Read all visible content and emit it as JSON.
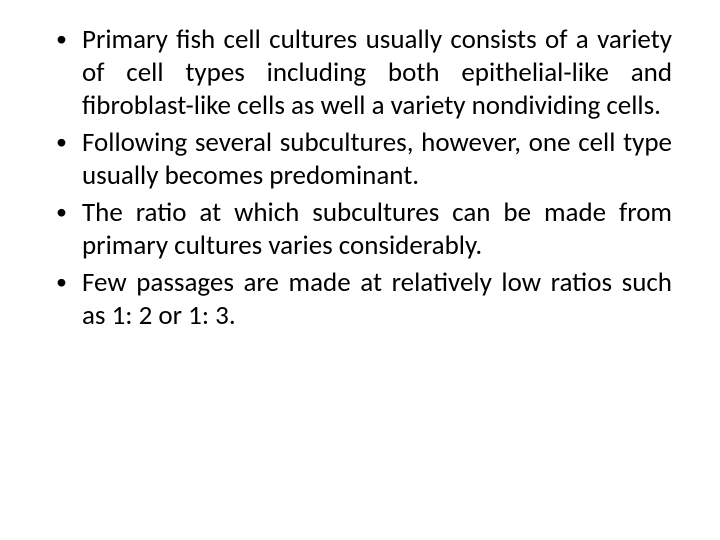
{
  "slide": {
    "background_color": "#ffffff",
    "text_color": "#000000",
    "font_family": "Calibri, 'Segoe UI', Arial, sans-serif",
    "font_size_pt": 20,
    "line_height": 1.22,
    "text_align": "justify",
    "bullet_glyph": "•",
    "bullets": [
      "Primary fish cell cultures usually consists of a variety of cell types including both epithelial-like and fibroblast-like cells as well  a variety nondividing cells.",
      "Following several subcultures, however, one cell type usually becomes predominant.",
      "The ratio at which subcultures can be made from primary cultures varies considerably.",
      " Few passages are made at relatively low ratios such as 1: 2 or 1: 3."
    ]
  }
}
